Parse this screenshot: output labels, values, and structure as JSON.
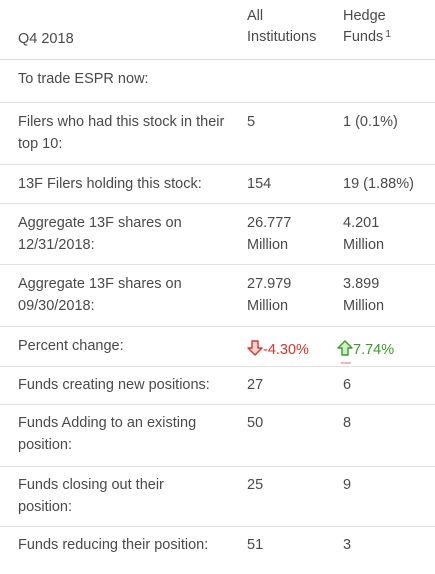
{
  "header": {
    "period": "Q4 2018",
    "all_institutions": "All Institutions",
    "hedge_funds": "Hedge Funds",
    "hedge_funds_footnote": "1"
  },
  "rows": [
    {
      "label": "To trade ESPR now:",
      "all": "",
      "hedge": ""
    },
    {
      "label": "Filers who had this stock in their top 10:",
      "all": "5",
      "hedge": "1 (0.1%)"
    },
    {
      "label": "13F Filers holding this stock:",
      "all": "154",
      "hedge": "19 (1.88%)"
    },
    {
      "label": "Aggregate 13F shares on 12/31/2018:",
      "all": "26.777 Million",
      "hedge": "4.201 Million"
    },
    {
      "label": "Aggregate 13F shares on 09/30/2018:",
      "all": "27.979 Million",
      "hedge": "3.899 Million"
    },
    {
      "label": "Percent change:",
      "all": "-4.30%",
      "hedge": "7.74%",
      "all_dir": "down",
      "hedge_dir": "up"
    },
    {
      "label": "Funds creating new positions:",
      "all": "27",
      "hedge": "6"
    },
    {
      "label": "Funds Adding to an existing position:",
      "all": "50",
      "hedge": "8"
    },
    {
      "label": "Funds closing out their position:",
      "all": "25",
      "hedge": "9"
    },
    {
      "label": "Funds reducing their position:",
      "all": "51",
      "hedge": "3"
    }
  ],
  "colors": {
    "negative": "#d9342b",
    "positive": "#3a9a2a",
    "text": "#4a4a4a",
    "divider": "#e2e2e2"
  }
}
